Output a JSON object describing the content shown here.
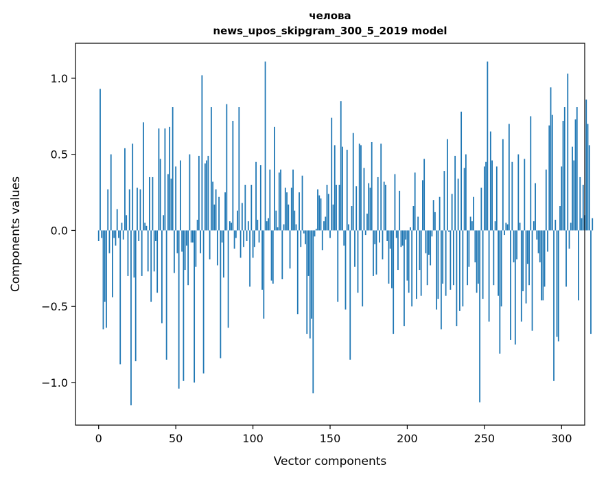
{
  "chart_data": {
    "type": "bar",
    "title_line1": "челова",
    "title_line2": "news_upos_skipgram_300_5_2019 model",
    "xlabel": "Vector components",
    "ylabel": "Components values",
    "xlim": [
      -15,
      315
    ],
    "ylim": [
      -1.28,
      1.23
    ],
    "xticks": [
      0,
      50,
      100,
      150,
      200,
      250,
      300
    ],
    "yticks": [
      -1.0,
      -0.5,
      0.0,
      0.5,
      1.0
    ],
    "ytick_labels": [
      "−1.0",
      "−0.5",
      "0.0",
      "0.5",
      "1.0"
    ],
    "bar_color": "#1f77b4",
    "values": [
      -0.07,
      0.93,
      -0.05,
      -0.65,
      -0.47,
      -0.64,
      0.27,
      -0.15,
      0.5,
      -0.44,
      -0.05,
      -0.1,
      0.14,
      -0.05,
      -0.88,
      0.05,
      -0.06,
      0.54,
      0.1,
      -0.3,
      0.27,
      -1.15,
      0.57,
      -0.31,
      -0.86,
      0.28,
      -0.07,
      0.27,
      -0.3,
      0.71,
      0.05,
      0.03,
      -0.27,
      0.35,
      -0.47,
      0.35,
      -0.27,
      -0.07,
      -0.41,
      0.67,
      0.47,
      -0.61,
      0.1,
      0.67,
      -0.85,
      0.37,
      0.68,
      0.34,
      0.81,
      -0.28,
      0.42,
      -0.15,
      -1.04,
      0.46,
      -0.14,
      -0.99,
      -0.26,
      -0.1,
      -0.36,
      0.5,
      -0.08,
      -0.08,
      -1.0,
      -0.24,
      0.07,
      0.49,
      -0.15,
      1.02,
      -0.94,
      0.44,
      0.46,
      0.49,
      -0.19,
      0.81,
      0.32,
      0.17,
      0.27,
      -0.23,
      0.22,
      -0.84,
      -0.08,
      -0.31,
      0.25,
      0.83,
      -0.64,
      0.06,
      0.05,
      0.72,
      -0.12,
      -0.05,
      0.13,
      0.81,
      -0.18,
      0.18,
      -0.11,
      0.3,
      -0.07,
      0.06,
      -0.37,
      0.3,
      -0.18,
      -0.11,
      0.45,
      0.07,
      -0.08,
      0.43,
      -0.39,
      -0.58,
      1.11,
      0.06,
      0.08,
      0.4,
      -0.33,
      -0.35,
      0.68,
      0.13,
      0.02,
      0.38,
      0.4,
      -0.32,
      0.04,
      0.28,
      0.25,
      0.17,
      -0.25,
      0.28,
      0.4,
      0.13,
      0.04,
      -0.55,
      0.25,
      -0.11,
      0.36,
      -0.02,
      -0.09,
      -0.68,
      -0.3,
      -0.71,
      -0.58,
      -1.07,
      -0.04,
      0.01,
      0.27,
      0.23,
      0.21,
      -0.13,
      0.06,
      0.09,
      0.3,
      0.24,
      -0.05,
      0.74,
      0.17,
      0.56,
      0.3,
      -0.47,
      0.3,
      0.85,
      0.55,
      -0.1,
      -0.52,
      0.53,
      0.04,
      -0.85,
      0.16,
      0.64,
      -0.24,
      0.29,
      -0.41,
      0.57,
      0.56,
      -0.5,
      0.41,
      -0.03,
      0.11,
      0.31,
      0.28,
      0.58,
      -0.3,
      -0.09,
      -0.29,
      0.35,
      -0.08,
      0.57,
      -0.19,
      0.32,
      0.3,
      -0.07,
      -0.35,
      -0.12,
      -0.38,
      -0.68,
      0.37,
      -0.05,
      -0.26,
      0.26,
      -0.11,
      -0.1,
      -0.63,
      -0.06,
      -0.33,
      -0.41,
      0.02,
      -0.5,
      0.16,
      0.38,
      -0.45,
      0.09,
      -0.26,
      -0.43,
      0.33,
      0.47,
      -0.15,
      -0.36,
      -0.16,
      -0.23,
      -0.04,
      0.2,
      0.12,
      -0.52,
      -0.45,
      0.22,
      -0.65,
      -0.35,
      0.39,
      -0.43,
      0.6,
      -0.01,
      -0.39,
      0.24,
      -0.36,
      0.49,
      -0.63,
      0.34,
      -0.53,
      0.78,
      -0.5,
      0.41,
      0.5,
      -0.36,
      -0.24,
      0.09,
      0.06,
      0.22,
      -0.21,
      -0.41,
      -0.35,
      -1.13,
      0.28,
      -0.45,
      0.42,
      0.45,
      1.11,
      -0.6,
      0.65,
      0.46,
      -0.36,
      0.06,
      0.42,
      -0.43,
      -0.81,
      -0.5,
      0.6,
      -0.03,
      0.05,
      0.04,
      0.7,
      -0.72,
      0.45,
      -0.21,
      -0.75,
      -0.19,
      0.5,
      0.05,
      -0.6,
      -0.4,
      0.47,
      -0.48,
      -0.22,
      -0.36,
      0.75,
      -0.66,
      0.06,
      0.31,
      -0.06,
      -0.15,
      -0.21,
      -0.46,
      -0.46,
      -0.37,
      0.4,
      -0.14,
      0.69,
      0.94,
      0.76,
      -0.99,
      0.07,
      -0.7,
      -0.73,
      0.16,
      0.42,
      0.72,
      0.81,
      -0.37,
      1.03,
      -0.12,
      0.05,
      0.55,
      0.46,
      0.73,
      0.81,
      -0.46,
      0.35,
      0.08,
      0.3,
      0.1,
      0.86,
      0.7,
      0.56,
      -0.68,
      0.08
    ]
  }
}
